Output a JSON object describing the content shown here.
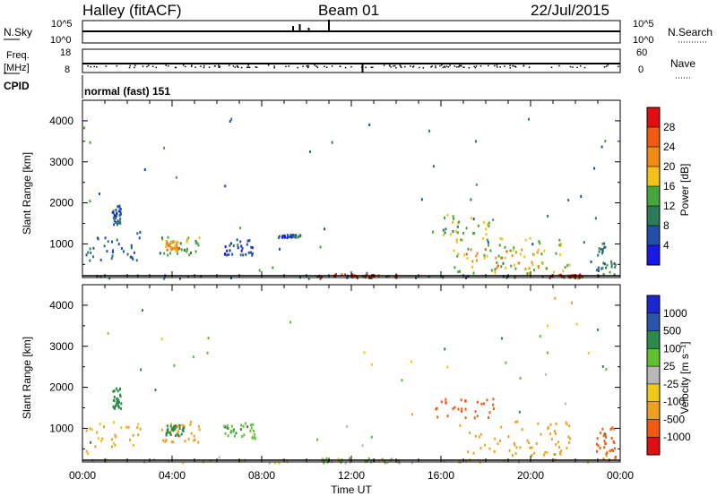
{
  "header": {
    "station": "Halley (fitACF)",
    "beam": "Beam 01",
    "date": "22/Jul/2015"
  },
  "strip_panels": {
    "nsky": {
      "left_label": "N.Sky",
      "left_ticks": [
        "10^5",
        "10^0"
      ],
      "right_label": "N.Search",
      "right_ticks": [
        "10^5",
        "10^0"
      ]
    },
    "freq": {
      "left_label_line1": "Freq.",
      "left_label_line2": "[MHz]",
      "left_ticks": [
        "18",
        "8"
      ],
      "right_label": "Nave",
      "right_ticks": [
        "60",
        "0"
      ]
    },
    "cpid": {
      "label": "CPID",
      "text": "normal (fast) 151"
    }
  },
  "x_axis": {
    "label": "Time UT",
    "ticks": [
      "00:00",
      "04:00",
      "08:00",
      "12:00",
      "16:00",
      "20:00",
      "00:00"
    ]
  },
  "colors": {
    "power_scale": [
      "#1818e8",
      "#1f4fa8",
      "#2c7a57",
      "#46a63b",
      "#f0c21a",
      "#f08c14",
      "#f05a12",
      "#e01010"
    ],
    "velocity_scale": [
      "#e01010",
      "#f05a12",
      "#f0a020",
      "#f0c818",
      "#b8b8b8",
      "#60c030",
      "#2c8a4a",
      "#2a55a8",
      "#1a28d0"
    ]
  },
  "chart_data": [
    {
      "type": "heatmap",
      "title": "",
      "xlabel": "Time UT",
      "ylabel": "Slant Range [km]",
      "xlim": [
        0,
        24
      ],
      "ylim": [
        180,
        4500
      ],
      "y_ticks": [
        "1000",
        "2000",
        "3000",
        "4000"
      ],
      "colorbar": {
        "label": "Power [dB]",
        "ticks": [
          "4",
          "8",
          "12",
          "16",
          "20",
          "24",
          "28"
        ]
      },
      "regions": [
        {
          "t0": 0.0,
          "t1": 23.8,
          "r0": 180,
          "r1": 260,
          "value": 8
        },
        {
          "t0": 0.1,
          "t1": 2.6,
          "r0": 600,
          "r1": 1200,
          "value": 8
        },
        {
          "t0": 1.3,
          "t1": 1.7,
          "r0": 1500,
          "r1": 2000,
          "value": 6
        },
        {
          "t0": 3.5,
          "t1": 5.2,
          "r0": 650,
          "r1": 1200,
          "value": 14
        },
        {
          "t0": 3.7,
          "t1": 4.3,
          "r0": 850,
          "r1": 1100,
          "value": 22
        },
        {
          "t0": 6.3,
          "t1": 7.7,
          "r0": 750,
          "r1": 1150,
          "value": 6
        },
        {
          "t0": 8.7,
          "t1": 9.7,
          "r0": 1180,
          "r1": 1250,
          "value": 7
        },
        {
          "t0": 10.5,
          "t1": 14.2,
          "r0": 200,
          "r1": 290,
          "value": 28
        },
        {
          "t0": 15.4,
          "t1": 18.4,
          "r0": 1250,
          "r1": 1750,
          "value": 14
        },
        {
          "t0": 16.5,
          "t1": 21.8,
          "r0": 300,
          "r1": 1200,
          "value": 16
        },
        {
          "t0": 17.0,
          "t1": 20.5,
          "r0": 400,
          "r1": 900,
          "value": 22
        },
        {
          "t0": 20.8,
          "t1": 22.3,
          "r0": 190,
          "r1": 280,
          "value": 28
        },
        {
          "t0": 22.9,
          "t1": 23.8,
          "r0": 250,
          "r1": 1050,
          "value": 10
        }
      ]
    },
    {
      "type": "heatmap",
      "title": "",
      "xlabel": "Time UT",
      "ylabel": "Slant Range [km]",
      "xlim": [
        0,
        24
      ],
      "ylim": [
        180,
        4500
      ],
      "y_ticks": [
        "1000",
        "2000",
        "3000",
        "4000"
      ],
      "colorbar": {
        "label": "Velocity [m s⁻¹]",
        "ticks": [
          "-1000",
          "-500",
          "-100",
          "-25",
          "25",
          "100",
          "500",
          "1000"
        ]
      },
      "regions": [
        {
          "t0": 0.0,
          "t1": 23.8,
          "r0": 180,
          "r1": 280,
          "value": -30
        },
        {
          "t0": 0.1,
          "t1": 2.6,
          "r0": 400,
          "r1": 1200,
          "value": -120
        },
        {
          "t0": 1.3,
          "t1": 1.7,
          "r0": 1500,
          "r1": 2000,
          "value": 400
        },
        {
          "t0": 3.5,
          "t1": 5.2,
          "r0": 650,
          "r1": 1200,
          "value": -150
        },
        {
          "t0": 3.7,
          "t1": 4.5,
          "r0": 850,
          "r1": 1100,
          "value": 300
        },
        {
          "t0": 6.3,
          "t1": 7.7,
          "r0": 750,
          "r1": 1150,
          "value": 80
        },
        {
          "t0": 10.5,
          "t1": 14.2,
          "r0": 190,
          "r1": 300,
          "value": 10
        },
        {
          "t0": 15.4,
          "t1": 18.4,
          "r0": 1250,
          "r1": 1750,
          "value": -600
        },
        {
          "t0": 16.8,
          "t1": 21.8,
          "r0": 350,
          "r1": 1200,
          "value": -200
        },
        {
          "t0": 22.9,
          "t1": 23.8,
          "r0": 250,
          "r1": 1050,
          "value": -700
        }
      ]
    }
  ]
}
